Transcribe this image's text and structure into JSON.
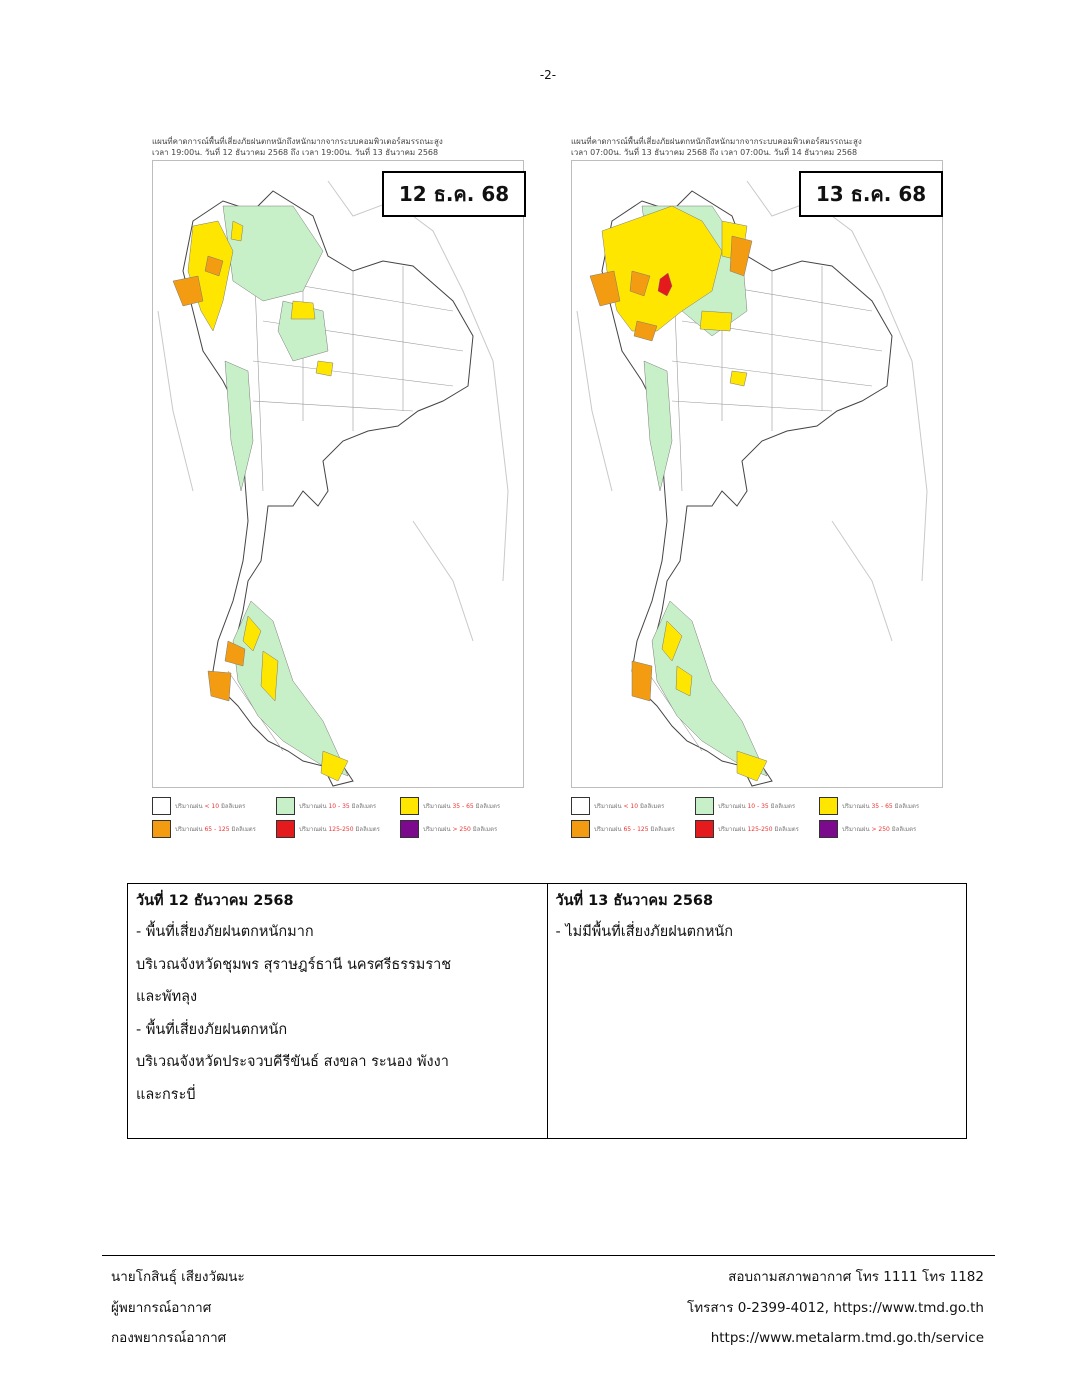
{
  "page_number": "-2-",
  "maps": [
    {
      "caption_line1": "แผนที่คาดการณ์พื้นที่เสี่ยงภัยฝนตกหนักถึงหนักมากจากระบบคอมพิวเตอร์สมรรถนะสูง",
      "caption_line2": "เวลา 19:00น. วันที่ 12 ธันวาคม 2568 ถึง เวลา 19:00น. วันที่ 13 ธันวาคม 2568",
      "date_label": "12 ธ.ค. 68"
    },
    {
      "caption_line1": "แผนที่คาดการณ์พื้นที่เสี่ยงภัยฝนตกหนักถึงหนักมากจากระบบคอมพิวเตอร์สมรรถนะสูง",
      "caption_line2": "เวลา 07:00น. วันที่ 13 ธันวาคม 2568 ถึง เวลา 07:00น. วันที่ 14 ธันวาคม 2568",
      "date_label": "13 ธ.ค. 68"
    }
  ],
  "legend": [
    {
      "prefix": "ปริมาณฝน",
      "range": "< 10",
      "unit": "มิลลิเมตร",
      "color": "#ffffff"
    },
    {
      "prefix": "ปริมาณฝน",
      "range": "10 - 35",
      "unit": "มิลลิเมตร",
      "color": "#c8f0c8"
    },
    {
      "prefix": "ปริมาณฝน",
      "range": "35 - 65",
      "unit": "มิลลิเมตร",
      "color": "#ffe600"
    },
    {
      "prefix": "ปริมาณฝน",
      "range": "65 - 125",
      "unit": "มิลลิเมตร",
      "color": "#f39c12"
    },
    {
      "prefix": "ปริมาณฝน",
      "range": "125-250",
      "unit": "มิลลิเมตร",
      "color": "#e41a1c"
    },
    {
      "prefix": "ปริมาณฝน",
      "range": "> 250",
      "unit": "มิลลิเมตร",
      "color": "#7b0a8c"
    }
  ],
  "summary": {
    "left": {
      "title": "วันที่ 12 ธันวาคม 2568",
      "lines": [
        "- พื้นที่เสี่ยงภัยฝนตกหนักมาก",
        "บริเวณจังหวัดชุมพร สุราษฎร์ธานี นครศรีธรรมราช",
        "และพัทลุง",
        "- พื้นที่เสี่ยงภัยฝนตกหนัก",
        "บริเวณจังหวัดประจวบคีรีขันธ์ สงขลา ระนอง พังงา",
        "และกระบี่"
      ]
    },
    "right": {
      "title": "วันที่ 13 ธันวาคม 2568",
      "lines": [
        "- ไม่มีพื้นที่เสี่ยงภัยฝนตกหนัก"
      ]
    }
  },
  "footer": {
    "left": [
      "นายโกสินธุ์ เสียงวัฒนะ",
      "ผู้พยากรณ์อากาศ",
      "กองพยากรณ์อากาศ"
    ],
    "right": [
      "สอบถามสภาพอากาศ โทร 1111 โทร 1182",
      "โทรสาร 0-2399-4012, https://www.tmd.go.th",
      "https://www.metalarm.tmd.go.th/service"
    ]
  }
}
